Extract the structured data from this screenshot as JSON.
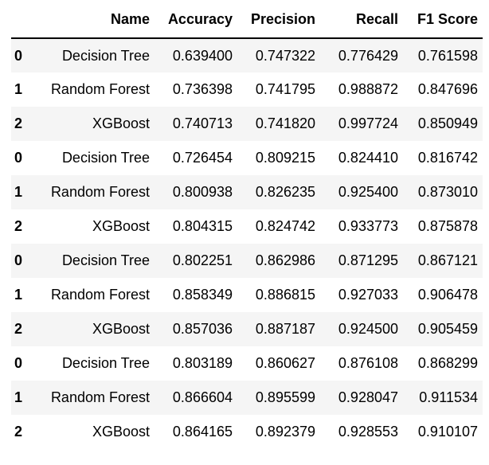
{
  "colors": {
    "background": "#ffffff",
    "stripe": "#f5f5f5",
    "text": "#000000",
    "header_border": "#000000"
  },
  "chart_data": {
    "type": "table",
    "index_header": "",
    "columns": [
      "Name",
      "Accuracy",
      "Precision",
      "Recall",
      "F1 Score"
    ],
    "rows": [
      [
        "0",
        "Decision Tree",
        "0.639400",
        "0.747322",
        "0.776429",
        "0.761598"
      ],
      [
        "1",
        "Random Forest",
        "0.736398",
        "0.741795",
        "0.988872",
        "0.847696"
      ],
      [
        "2",
        "XGBoost",
        "0.740713",
        "0.741820",
        "0.997724",
        "0.850949"
      ],
      [
        "0",
        "Decision Tree",
        "0.726454",
        "0.809215",
        "0.824410",
        "0.816742"
      ],
      [
        "1",
        "Random Forest",
        "0.800938",
        "0.826235",
        "0.925400",
        "0.873010"
      ],
      [
        "2",
        "XGBoost",
        "0.804315",
        "0.824742",
        "0.933773",
        "0.875878"
      ],
      [
        "0",
        "Decision Tree",
        "0.802251",
        "0.862986",
        "0.871295",
        "0.867121"
      ],
      [
        "1",
        "Random Forest",
        "0.858349",
        "0.886815",
        "0.927033",
        "0.906478"
      ],
      [
        "2",
        "XGBoost",
        "0.857036",
        "0.887187",
        "0.924500",
        "0.905459"
      ],
      [
        "0",
        "Decision Tree",
        "0.803189",
        "0.860627",
        "0.876108",
        "0.868299"
      ],
      [
        "1",
        "Random Forest",
        "0.866604",
        "0.895599",
        "0.928047",
        "0.911534"
      ],
      [
        "2",
        "XGBoost",
        "0.864165",
        "0.892379",
        "0.928553",
        "0.910107"
      ]
    ],
    "layout": {
      "striped_rows": "odd rows shaded",
      "alignment": "right",
      "index_bold": true,
      "header_bold": true
    }
  }
}
